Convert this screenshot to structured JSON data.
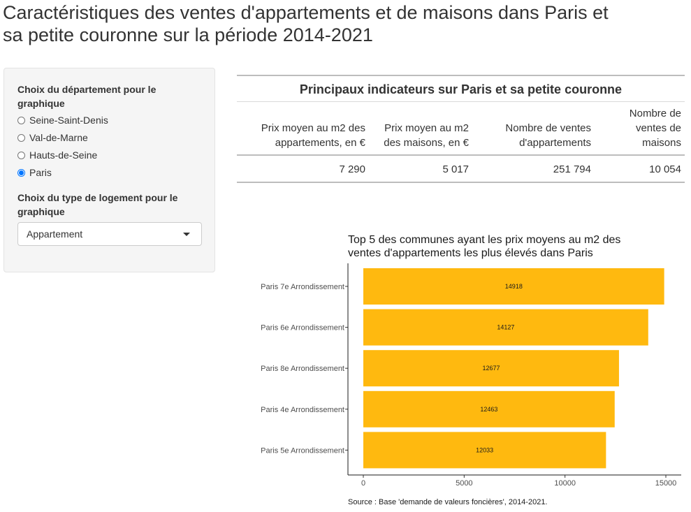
{
  "page": {
    "title_line1": "Caractéristiques des ventes d'appartements et de maisons dans Paris et",
    "title_line2": "sa petite couronne sur la période 2014-2021"
  },
  "sidebar": {
    "department_label": "Choix du département pour le graphique",
    "departments": [
      {
        "label": "Seine-Saint-Denis",
        "checked": false
      },
      {
        "label": "Val-de-Marne",
        "checked": false
      },
      {
        "label": "Hauts-de-Seine",
        "checked": false
      },
      {
        "label": "Paris",
        "checked": true
      }
    ],
    "housing_label": "Choix du type de logement pour le graphique",
    "housing_selected": "Appartement"
  },
  "table": {
    "title": "Principaux indicateurs sur Paris et sa petite couronne",
    "headers": [
      "Prix moyen au m2 des appartements, en €",
      "Prix moyen au m2 des maisons, en €",
      "Nombre de ventes d'appartements",
      "Nombre de ventes de maisons"
    ],
    "values": [
      "7 290",
      "5 017",
      "251 794",
      "10 054"
    ]
  },
  "chart_data": {
    "type": "bar",
    "orientation": "horizontal",
    "title": "Top 5 des communes ayant les prix moyens au m2 des ventes d'appartements les plus élevés dans Paris",
    "categories": [
      "Paris 7e Arrondissement",
      "Paris 6e Arrondissement",
      "Paris 8e Arrondissement",
      "Paris 4e Arrondissement",
      "Paris 5e Arrondissement"
    ],
    "values": [
      14918,
      14127,
      12677,
      12463,
      12033
    ],
    "xlim": [
      0,
      15000
    ],
    "x_ticks": [
      0,
      5000,
      10000,
      15000
    ],
    "xlabel": "",
    "ylabel": "",
    "bar_color": "#ffb90f",
    "grid": false,
    "caption": "Source : Base 'demande de valeurs foncières', 2014-2021."
  }
}
